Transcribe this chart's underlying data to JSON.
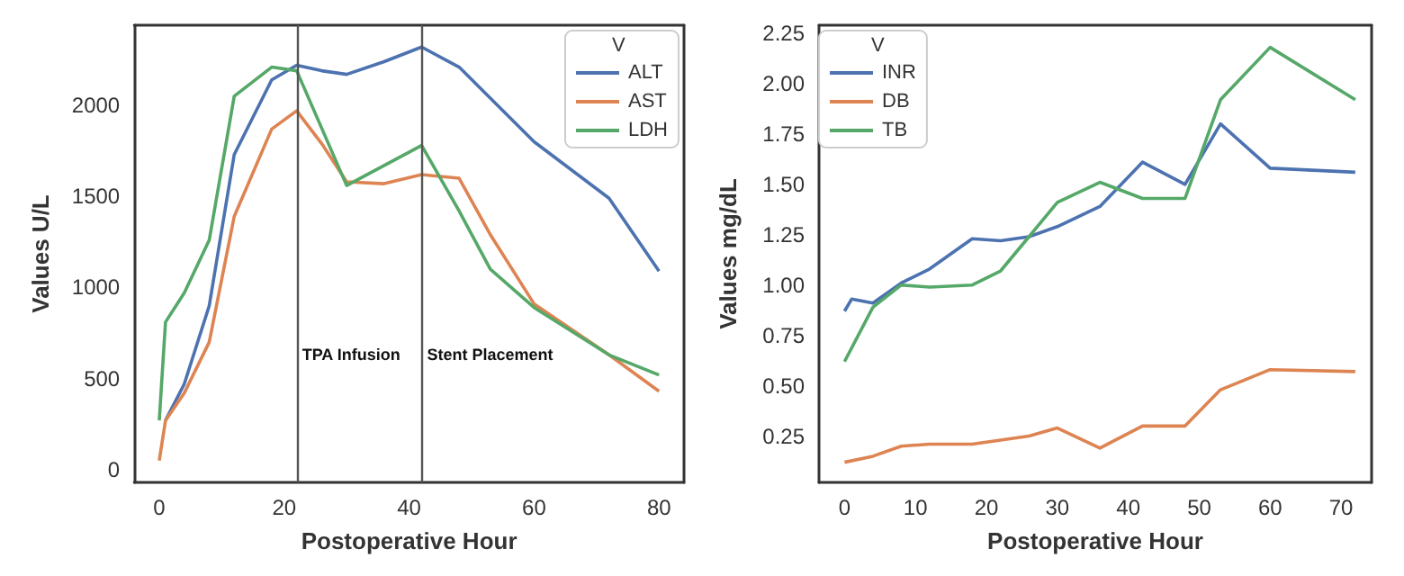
{
  "chart_data": [
    {
      "type": "line",
      "xlabel": "Postoperative Hour",
      "ylabel": "Values U/L",
      "legend_title": "V",
      "legend": "top right",
      "xlim": [
        -4,
        84
      ],
      "xticks": [
        0,
        20,
        40,
        60,
        80
      ],
      "ylim": [
        -70,
        2440
      ],
      "yticks": [
        0,
        500,
        1000,
        1500,
        2000
      ],
      "series": [
        {
          "name": "ALT",
          "color": "#4c72b0",
          "x": [
            1,
            4,
            8,
            12,
            18,
            22,
            26,
            30,
            36,
            42,
            48,
            60,
            72,
            80
          ],
          "values": [
            270,
            470,
            900,
            1730,
            2140,
            2220,
            2190,
            2170,
            2240,
            2320,
            2210,
            1800,
            1490,
            1090
          ]
        },
        {
          "name": "AST",
          "color": "#dd8452",
          "x": [
            0,
            1,
            4,
            8,
            12,
            18,
            22,
            26,
            30,
            36,
            42,
            48,
            53,
            60,
            72,
            80
          ],
          "values": [
            50,
            270,
            420,
            700,
            1390,
            1870,
            1970,
            1790,
            1580,
            1570,
            1620,
            1600,
            1290,
            910,
            630,
            430
          ]
        },
        {
          "name": "LDH",
          "color": "#55a868",
          "x": [
            0,
            1,
            4,
            8,
            12,
            18,
            22,
            30,
            42,
            48,
            53,
            60,
            72,
            80
          ],
          "values": [
            270,
            810,
            970,
            1260,
            2050,
            2210,
            2190,
            1560,
            1780,
            1420,
            1100,
            890,
            630,
            520
          ]
        }
      ],
      "ref_lines": [
        {
          "axis": "x",
          "value": 22,
          "label": "TPA Infusion",
          "color": "#555555"
        },
        {
          "axis": "x",
          "value": 42,
          "label": "Stent Placement",
          "color": "#555555"
        }
      ]
    },
    {
      "type": "line",
      "xlabel": "Postoperative Hour",
      "ylabel": "Values mg/dL",
      "legend_title": "V",
      "legend": "top left",
      "xlim": [
        -3.6,
        74.3
      ],
      "xticks": [
        0,
        10,
        20,
        30,
        40,
        50,
        60,
        70
      ],
      "ylim": [
        0.02,
        2.29
      ],
      "yticks": [
        {
          "value": 0.25,
          "label": "0.25"
        },
        {
          "value": 0.5,
          "label": "0.50"
        },
        {
          "value": 0.75,
          "label": "0.75"
        },
        {
          "value": 1,
          "label": "1.00"
        },
        {
          "value": 1.25,
          "label": "1.25"
        },
        {
          "value": 1.5,
          "label": "1.50"
        },
        {
          "value": 1.75,
          "label": "1.75"
        },
        {
          "value": 2,
          "label": "2.00"
        },
        {
          "value": 2.25,
          "label": "2.25"
        }
      ],
      "series": [
        {
          "name": "INR",
          "color": "#4c72b0",
          "x": [
            0,
            1,
            4,
            8,
            12,
            18,
            22,
            26,
            30,
            36,
            42,
            48,
            53,
            60,
            72
          ],
          "values": [
            0.87,
            0.93,
            0.91,
            1.01,
            1.08,
            1.23,
            1.22,
            1.24,
            1.29,
            1.39,
            1.61,
            1.5,
            1.8,
            1.58,
            1.56
          ]
        },
        {
          "name": "DB",
          "color": "#dd8452",
          "x": [
            0,
            4,
            8,
            12,
            18,
            22,
            26,
            30,
            36,
            42,
            48,
            53,
            60,
            72
          ],
          "values": [
            0.12,
            0.15,
            0.2,
            0.21,
            0.21,
            0.23,
            0.25,
            0.29,
            0.19,
            0.3,
            0.3,
            0.48,
            0.58,
            0.57
          ]
        },
        {
          "name": "TB",
          "color": "#55a868",
          "x": [
            0,
            4,
            8,
            12,
            18,
            22,
            26,
            30,
            36,
            42,
            48,
            53,
            60,
            72
          ],
          "values": [
            0.62,
            0.89,
            1,
            0.99,
            1,
            1.07,
            1.24,
            1.41,
            1.51,
            1.43,
            1.43,
            1.92,
            2.18,
            1.92
          ]
        }
      ]
    }
  ]
}
